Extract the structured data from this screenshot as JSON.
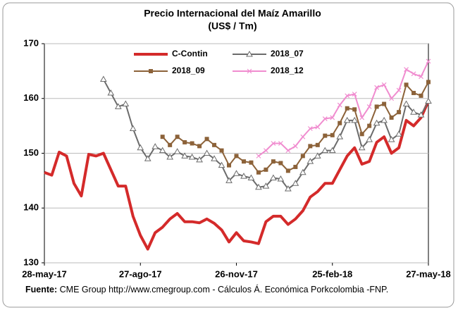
{
  "chart_data": {
    "type": "line",
    "title": "Precio Internacional del Maíz Amarillo",
    "subtitle": "(US$ / Tm)",
    "categories": [
      "28-may-17",
      null,
      null,
      null,
      null,
      null,
      null,
      null,
      null,
      null,
      null,
      null,
      null,
      "27-ago-17",
      null,
      null,
      null,
      null,
      null,
      null,
      null,
      null,
      null,
      null,
      null,
      null,
      "26-nov-17",
      null,
      null,
      null,
      null,
      null,
      null,
      null,
      null,
      null,
      null,
      null,
      null,
      "25-feb-18",
      null,
      null,
      null,
      null,
      null,
      null,
      null,
      null,
      null,
      null,
      null,
      null,
      "27-may-18"
    ],
    "series": [
      {
        "name": "C-Contin",
        "color": "#d42a2a",
        "marker": "none",
        "values": [
          146.5,
          146,
          150.2,
          149.5,
          144.5,
          142.2,
          149.8,
          149.5,
          150,
          147,
          144,
          144,
          138.5,
          135,
          132.5,
          135.5,
          136.5,
          138,
          139,
          137.5,
          137.5,
          137.3,
          138,
          137.2,
          136,
          133.8,
          135.5,
          134,
          133.8,
          133.5,
          137.5,
          138.5,
          138.5,
          137,
          138,
          139.5,
          142,
          143,
          144.5,
          144.5,
          147,
          149.5,
          151,
          148,
          148.5,
          152,
          153,
          150,
          151,
          156,
          155,
          156.5,
          159.5
        ]
      },
      {
        "name": "2018_07",
        "color": "#6b6b6b",
        "marker": "triangle",
        "values": [
          null,
          null,
          null,
          null,
          null,
          null,
          null,
          null,
          163.5,
          161,
          158.5,
          159,
          154.5,
          151,
          149,
          151.2,
          150.5,
          149.3,
          150.3,
          149.5,
          149.3,
          148.8,
          150,
          149,
          147.8,
          145,
          146.3,
          145.8,
          145.5,
          143.8,
          144,
          145.5,
          145.3,
          143.5,
          144.5,
          146.5,
          148.5,
          149.5,
          150.5,
          150.5,
          153,
          156,
          156,
          151,
          152.5,
          155.5,
          156,
          152.5,
          153.5,
          159,
          157.5,
          157,
          159.5
        ]
      },
      {
        "name": "2018_09",
        "color": "#8c6239",
        "marker": "square",
        "values": [
          null,
          null,
          null,
          null,
          null,
          null,
          null,
          null,
          null,
          null,
          null,
          null,
          null,
          null,
          null,
          null,
          153,
          151.5,
          153,
          152,
          151.8,
          151.3,
          152.6,
          151.5,
          150.5,
          147.8,
          149.5,
          148.5,
          148.3,
          146.5,
          147,
          148.5,
          148.2,
          146.8,
          147.5,
          149.5,
          151.3,
          151.5,
          153.2,
          153.3,
          155.5,
          158.2,
          158,
          153.5,
          155,
          158.5,
          159,
          156.5,
          157.5,
          162.5,
          161,
          160.5,
          163
        ]
      },
      {
        "name": "2018_12",
        "color": "#f08ccf",
        "marker": "x",
        "values": [
          null,
          null,
          null,
          null,
          null,
          null,
          null,
          null,
          null,
          null,
          null,
          null,
          null,
          null,
          null,
          null,
          null,
          null,
          null,
          null,
          null,
          null,
          null,
          null,
          null,
          null,
          null,
          null,
          null,
          149.5,
          150.5,
          151.8,
          151.8,
          150.5,
          151.3,
          153,
          154.5,
          154.8,
          156.3,
          156.5,
          158.8,
          160.5,
          160.8,
          156.5,
          158.5,
          162,
          162.5,
          160,
          161.5,
          165.3,
          164.5,
          164,
          166.8
        ]
      }
    ],
    "ylim": [
      130,
      170
    ],
    "yticks": [
      130,
      140,
      150,
      160,
      170
    ],
    "grid": true,
    "source_label": "Fuente:",
    "source": "CME Group http://www.cmegroup.com - Cálculos Á. Económica Porkcolombia -FNP."
  }
}
